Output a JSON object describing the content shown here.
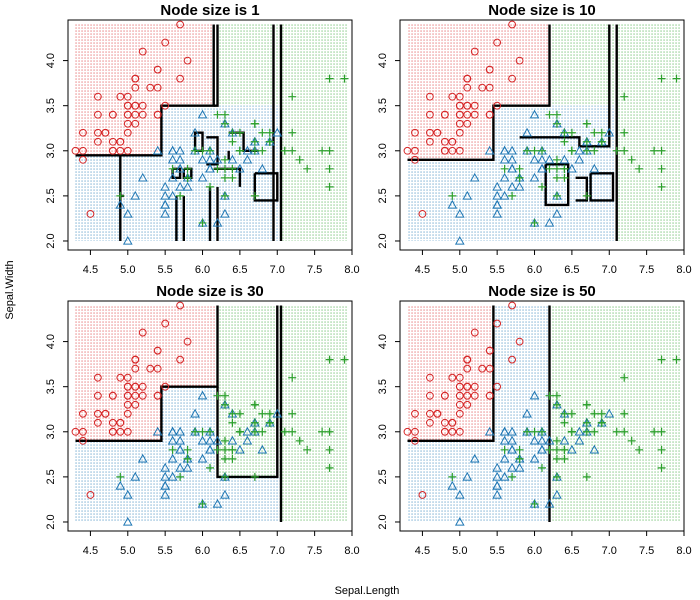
{
  "figure": {
    "xlabel": "Sepal.Length",
    "ylabel": "Sepal.Width"
  },
  "colors": {
    "setosa": "#d62728",
    "versicolor": "#1f77b4",
    "virginica": "#2ca02c",
    "boundary": "#000000",
    "frame": "#000000"
  },
  "chart_data": [
    {
      "type": "scatter",
      "title": "Node size is 1",
      "xlim": [
        4.2,
        8.0
      ],
      "ylim": [
        1.9,
        4.45
      ],
      "xticks": [
        "4.5",
        "5.0",
        "5.5",
        "6.0",
        "6.5",
        "7.0",
        "7.5",
        "8.0"
      ],
      "yticks": [
        "2.0",
        "2.5",
        "3.0",
        "3.5",
        "4.0"
      ],
      "regions": [
        {
          "class": "setosa",
          "x": [
            4.3,
            5.45
          ],
          "y": [
            2.95,
            4.4
          ]
        },
        {
          "class": "setosa",
          "x": [
            5.45,
            6.15
          ],
          "y": [
            3.5,
            4.4
          ]
        },
        {
          "class": "virginica",
          "x": [
            6.15,
            7.95
          ],
          "y": [
            3.5,
            4.4
          ]
        },
        {
          "class": "virginica",
          "x": [
            7.05,
            7.95
          ],
          "y": [
            2.0,
            3.5
          ]
        },
        {
          "class": "versicolor",
          "x": [
            4.3,
            7.05
          ],
          "y": [
            2.0,
            2.95
          ]
        },
        {
          "class": "versicolor",
          "x": [
            5.45,
            7.05
          ],
          "y": [
            2.95,
            3.5
          ]
        }
      ],
      "boundaries": [
        [
          [
            4.3,
            2.95
          ],
          [
            5.45,
            2.95
          ],
          [
            5.45,
            3.5
          ],
          [
            6.15,
            3.5
          ],
          [
            6.15,
            4.4
          ]
        ],
        [
          [
            6.15,
            3.5
          ],
          [
            6.2,
            3.5
          ],
          [
            6.2,
            4.4
          ]
        ],
        [
          [
            6.95,
            4.4
          ],
          [
            6.95,
            2.0
          ]
        ],
        [
          [
            7.05,
            4.4
          ],
          [
            7.05,
            2.0
          ]
        ],
        [
          [
            5.9,
            3.0
          ],
          [
            6.0,
            3.0
          ],
          [
            6.0,
            3.2
          ],
          [
            5.9,
            3.2
          ],
          [
            5.9,
            3.0
          ]
        ],
        [
          [
            6.05,
            2.85
          ],
          [
            6.2,
            2.85
          ],
          [
            6.2,
            3.15
          ],
          [
            6.05,
            3.15
          ]
        ],
        [
          [
            6.15,
            2.8
          ],
          [
            6.5,
            2.8
          ],
          [
            6.5,
            2.6
          ]
        ],
        [
          [
            6.7,
            2.75
          ],
          [
            7.0,
            2.75
          ],
          [
            7.0,
            2.45
          ],
          [
            6.7,
            2.45
          ],
          [
            6.7,
            2.75
          ]
        ],
        [
          [
            4.9,
            2.95
          ],
          [
            4.9,
            2.0
          ]
        ],
        [
          [
            4.95,
            2.5
          ],
          [
            4.9,
            2.5
          ]
        ],
        [
          [
            5.6,
            2.8
          ],
          [
            5.7,
            2.8
          ],
          [
            5.7,
            2.7
          ],
          [
            5.6,
            2.7
          ],
          [
            5.6,
            2.8
          ]
        ],
        [
          [
            5.75,
            2.8
          ],
          [
            5.85,
            2.8
          ],
          [
            5.85,
            2.7
          ],
          [
            5.75,
            2.7
          ],
          [
            5.75,
            2.8
          ]
        ],
        [
          [
            5.65,
            2.0
          ],
          [
            5.65,
            2.5
          ]
        ],
        [
          [
            5.75,
            2.0
          ],
          [
            5.75,
            2.5
          ]
        ],
        [
          [
            6.1,
            2.0
          ],
          [
            6.1,
            2.6
          ]
        ],
        [
          [
            6.2,
            2.0
          ],
          [
            6.2,
            2.6
          ]
        ],
        [
          [
            6.35,
            3.2
          ],
          [
            6.55,
            3.2
          ],
          [
            6.55,
            3.0
          ],
          [
            6.75,
            3.0
          ]
        ],
        [
          [
            6.35,
            3.0
          ],
          [
            6.35,
            2.9
          ]
        ]
      ]
    },
    {
      "type": "scatter",
      "title": "Node size is 10",
      "xlim": [
        4.2,
        8.0
      ],
      "ylim": [
        1.9,
        4.45
      ],
      "xticks": [
        "4.5",
        "5.0",
        "5.5",
        "6.0",
        "6.5",
        "7.0",
        "7.5",
        "8.0"
      ],
      "yticks": [
        "2.0",
        "2.5",
        "3.0",
        "3.5",
        "4.0"
      ],
      "regions": [
        {
          "class": "setosa",
          "x": [
            4.3,
            5.45
          ],
          "y": [
            2.9,
            4.4
          ]
        },
        {
          "class": "setosa",
          "x": [
            5.45,
            6.2
          ],
          "y": [
            3.5,
            4.4
          ]
        },
        {
          "class": "virginica",
          "x": [
            6.2,
            7.95
          ],
          "y": [
            3.5,
            4.4
          ]
        },
        {
          "class": "virginica",
          "x": [
            7.1,
            7.95
          ],
          "y": [
            2.0,
            3.5
          ]
        },
        {
          "class": "versicolor",
          "x": [
            4.3,
            7.1
          ],
          "y": [
            2.0,
            2.9
          ]
        },
        {
          "class": "versicolor",
          "x": [
            5.45,
            7.1
          ],
          "y": [
            2.9,
            3.5
          ]
        }
      ],
      "boundaries": [
        [
          [
            4.3,
            2.9
          ],
          [
            5.45,
            2.9
          ],
          [
            5.45,
            3.5
          ],
          [
            6.2,
            3.5
          ],
          [
            6.2,
            4.4
          ]
        ],
        [
          [
            5.8,
            3.15
          ],
          [
            6.6,
            3.15
          ],
          [
            6.6,
            3.05
          ],
          [
            7.0,
            3.05
          ],
          [
            7.0,
            4.4
          ]
        ],
        [
          [
            7.1,
            4.4
          ],
          [
            7.1,
            2.0
          ]
        ],
        [
          [
            6.15,
            2.85
          ],
          [
            6.45,
            2.85
          ],
          [
            6.45,
            2.4
          ],
          [
            6.15,
            2.4
          ],
          [
            6.15,
            2.85
          ]
        ],
        [
          [
            6.55,
            2.7
          ],
          [
            6.7,
            2.7
          ],
          [
            6.7,
            2.45
          ],
          [
            6.55,
            2.45
          ]
        ],
        [
          [
            6.75,
            2.75
          ],
          [
            7.05,
            2.75
          ],
          [
            7.05,
            2.45
          ],
          [
            6.75,
            2.45
          ],
          [
            6.75,
            2.75
          ]
        ]
      ]
    },
    {
      "type": "scatter",
      "title": "Node size is 30",
      "xlim": [
        4.2,
        8.0
      ],
      "ylim": [
        1.9,
        4.45
      ],
      "xticks": [
        "4.5",
        "5.0",
        "5.5",
        "6.0",
        "6.5",
        "7.0",
        "7.5",
        "8.0"
      ],
      "yticks": [
        "2.0",
        "2.5",
        "3.0",
        "3.5",
        "4.0"
      ],
      "regions": [
        {
          "class": "setosa",
          "x": [
            4.3,
            5.45
          ],
          "y": [
            2.9,
            4.4
          ]
        },
        {
          "class": "setosa",
          "x": [
            5.45,
            6.2
          ],
          "y": [
            3.5,
            4.4
          ]
        },
        {
          "class": "virginica",
          "x": [
            6.2,
            7.95
          ],
          "y": [
            2.5,
            4.4
          ]
        },
        {
          "class": "versicolor",
          "x": [
            4.3,
            6.2
          ],
          "y": [
            2.0,
            2.9
          ]
        },
        {
          "class": "versicolor",
          "x": [
            5.45,
            6.2
          ],
          "y": [
            2.9,
            3.5
          ]
        },
        {
          "class": "versicolor",
          "x": [
            6.2,
            7.05
          ],
          "y": [
            2.0,
            2.5
          ]
        },
        {
          "class": "virginica",
          "x": [
            7.05,
            7.95
          ],
          "y": [
            2.0,
            2.5
          ]
        }
      ],
      "boundaries": [
        [
          [
            4.3,
            2.9
          ],
          [
            5.45,
            2.9
          ],
          [
            5.45,
            3.5
          ],
          [
            6.2,
            3.5
          ],
          [
            6.2,
            4.4
          ]
        ],
        [
          [
            6.2,
            3.5
          ],
          [
            6.2,
            2.5
          ],
          [
            7.0,
            2.5
          ],
          [
            7.0,
            4.4
          ]
        ],
        [
          [
            7.05,
            4.4
          ],
          [
            7.05,
            2.0
          ]
        ]
      ]
    },
    {
      "type": "scatter",
      "title": "Node size is 50",
      "xlim": [
        4.2,
        8.0
      ],
      "ylim": [
        1.9,
        4.45
      ],
      "xticks": [
        "4.5",
        "5.0",
        "5.5",
        "6.0",
        "6.5",
        "7.0",
        "7.5",
        "8.0"
      ],
      "yticks": [
        "2.0",
        "2.5",
        "3.0",
        "3.5",
        "4.0"
      ],
      "regions": [
        {
          "class": "setosa",
          "x": [
            4.3,
            5.45
          ],
          "y": [
            2.9,
            4.4
          ]
        },
        {
          "class": "versicolor",
          "x": [
            5.45,
            6.2
          ],
          "y": [
            2.0,
            4.4
          ]
        },
        {
          "class": "versicolor",
          "x": [
            4.3,
            5.45
          ],
          "y": [
            2.0,
            2.9
          ]
        },
        {
          "class": "virginica",
          "x": [
            6.2,
            7.95
          ],
          "y": [
            2.0,
            4.4
          ]
        }
      ],
      "boundaries": [
        [
          [
            4.3,
            2.9
          ],
          [
            5.45,
            2.9
          ],
          [
            5.45,
            4.4
          ]
        ],
        [
          [
            6.2,
            4.4
          ],
          [
            6.2,
            2.0
          ]
        ]
      ]
    }
  ],
  "points": {
    "setosa": [
      [
        5.1,
        3.5
      ],
      [
        4.9,
        3.0
      ],
      [
        4.7,
        3.2
      ],
      [
        4.6,
        3.1
      ],
      [
        5.0,
        3.6
      ],
      [
        5.4,
        3.9
      ],
      [
        4.6,
        3.4
      ],
      [
        5.0,
        3.4
      ],
      [
        4.4,
        2.9
      ],
      [
        4.9,
        3.1
      ],
      [
        5.4,
        3.7
      ],
      [
        4.8,
        3.4
      ],
      [
        4.8,
        3.0
      ],
      [
        4.3,
        3.0
      ],
      [
        5.8,
        4.0
      ],
      [
        5.7,
        4.4
      ],
      [
        5.4,
        3.9
      ],
      [
        5.1,
        3.5
      ],
      [
        5.7,
        3.8
      ],
      [
        5.1,
        3.8
      ],
      [
        5.4,
        3.4
      ],
      [
        5.1,
        3.7
      ],
      [
        4.6,
        3.6
      ],
      [
        5.1,
        3.3
      ],
      [
        4.8,
        3.4
      ],
      [
        5.0,
        3.0
      ],
      [
        5.0,
        3.4
      ],
      [
        5.2,
        3.5
      ],
      [
        5.2,
        3.4
      ],
      [
        4.7,
        3.2
      ],
      [
        4.8,
        3.1
      ],
      [
        5.4,
        3.4
      ],
      [
        5.2,
        4.1
      ],
      [
        5.5,
        4.2
      ],
      [
        4.9,
        3.1
      ],
      [
        5.0,
        3.2
      ],
      [
        5.5,
        3.5
      ],
      [
        4.9,
        3.6
      ],
      [
        4.4,
        3.0
      ],
      [
        5.1,
        3.4
      ],
      [
        5.0,
        3.5
      ],
      [
        4.5,
        2.3
      ],
      [
        4.4,
        3.2
      ],
      [
        5.0,
        3.5
      ],
      [
        5.1,
        3.8
      ],
      [
        4.8,
        3.0
      ],
      [
        5.1,
        3.8
      ],
      [
        4.6,
        3.2
      ],
      [
        5.3,
        3.7
      ],
      [
        5.0,
        3.3
      ]
    ],
    "versicolor": [
      [
        7.0,
        3.2
      ],
      [
        6.4,
        3.2
      ],
      [
        6.9,
        3.1
      ],
      [
        5.5,
        2.3
      ],
      [
        6.5,
        2.8
      ],
      [
        5.7,
        2.8
      ],
      [
        6.3,
        3.3
      ],
      [
        4.9,
        2.4
      ],
      [
        6.6,
        2.9
      ],
      [
        5.2,
        2.7
      ],
      [
        5.0,
        2.0
      ],
      [
        5.9,
        3.0
      ],
      [
        6.0,
        2.2
      ],
      [
        6.1,
        2.9
      ],
      [
        5.6,
        2.9
      ],
      [
        6.7,
        3.1
      ],
      [
        5.6,
        3.0
      ],
      [
        5.8,
        2.7
      ],
      [
        6.2,
        2.2
      ],
      [
        5.6,
        2.5
      ],
      [
        5.9,
        3.2
      ],
      [
        6.1,
        2.8
      ],
      [
        6.3,
        2.5
      ],
      [
        6.1,
        2.8
      ],
      [
        6.4,
        2.9
      ],
      [
        6.6,
        3.0
      ],
      [
        6.8,
        2.8
      ],
      [
        6.7,
        3.0
      ],
      [
        6.0,
        2.9
      ],
      [
        5.7,
        2.6
      ],
      [
        5.5,
        2.4
      ],
      [
        5.5,
        2.4
      ],
      [
        5.8,
        2.7
      ],
      [
        6.0,
        2.7
      ],
      [
        5.4,
        3.0
      ],
      [
        6.0,
        3.4
      ],
      [
        6.7,
        3.1
      ],
      [
        6.3,
        2.3
      ],
      [
        5.6,
        3.0
      ],
      [
        5.5,
        2.5
      ],
      [
        5.5,
        2.6
      ],
      [
        6.1,
        3.0
      ],
      [
        5.8,
        2.6
      ],
      [
        5.0,
        2.3
      ],
      [
        5.6,
        2.7
      ],
      [
        5.7,
        3.0
      ],
      [
        5.7,
        2.9
      ],
      [
        6.2,
        2.9
      ],
      [
        5.1,
        2.5
      ],
      [
        5.7,
        2.8
      ]
    ],
    "virginica": [
      [
        6.3,
        3.3
      ],
      [
        5.8,
        2.7
      ],
      [
        7.1,
        3.0
      ],
      [
        6.3,
        2.9
      ],
      [
        6.5,
        3.0
      ],
      [
        7.6,
        3.0
      ],
      [
        4.9,
        2.5
      ],
      [
        7.3,
        2.9
      ],
      [
        6.7,
        2.5
      ],
      [
        7.2,
        3.6
      ],
      [
        6.5,
        3.2
      ],
      [
        6.4,
        2.7
      ],
      [
        6.8,
        3.0
      ],
      [
        5.7,
        2.5
      ],
      [
        5.8,
        2.8
      ],
      [
        6.4,
        3.2
      ],
      [
        6.5,
        3.0
      ],
      [
        7.7,
        3.8
      ],
      [
        7.7,
        2.6
      ],
      [
        6.0,
        2.2
      ],
      [
        6.9,
        3.2
      ],
      [
        5.6,
        2.8
      ],
      [
        7.7,
        2.8
      ],
      [
        6.3,
        2.7
      ],
      [
        6.7,
        3.3
      ],
      [
        7.2,
        3.2
      ],
      [
        6.2,
        2.8
      ],
      [
        6.1,
        3.0
      ],
      [
        6.4,
        2.8
      ],
      [
        7.2,
        3.0
      ],
      [
        7.4,
        2.8
      ],
      [
        7.9,
        3.8
      ],
      [
        6.4,
        2.8
      ],
      [
        6.3,
        2.8
      ],
      [
        6.1,
        2.6
      ],
      [
        7.7,
        3.0
      ],
      [
        6.3,
        3.4
      ],
      [
        6.4,
        3.1
      ],
      [
        6.0,
        3.0
      ],
      [
        6.9,
        3.1
      ],
      [
        6.7,
        3.1
      ],
      [
        6.9,
        3.1
      ],
      [
        5.8,
        2.7
      ],
      [
        6.8,
        3.2
      ],
      [
        6.7,
        3.3
      ],
      [
        6.7,
        3.0
      ],
      [
        6.3,
        2.5
      ],
      [
        6.5,
        3.0
      ],
      [
        6.2,
        3.4
      ],
      [
        5.9,
        3.0
      ]
    ]
  }
}
